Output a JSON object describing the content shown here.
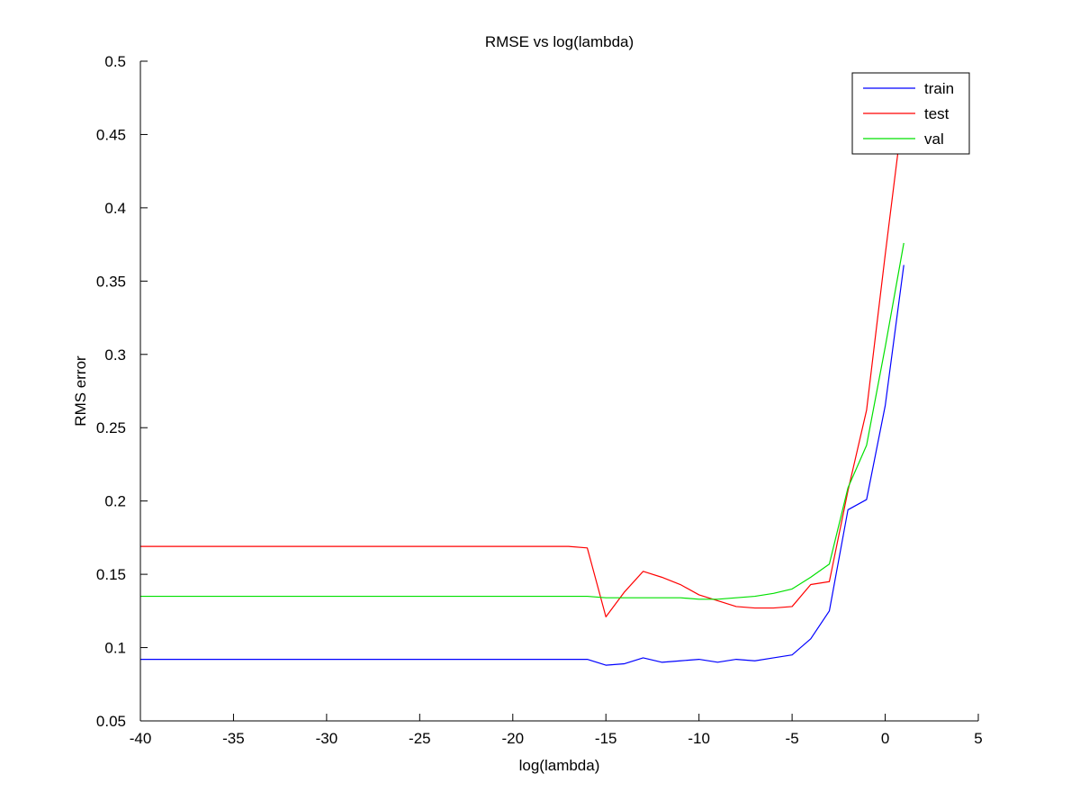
{
  "chart_data": {
    "type": "line",
    "title": "RMSE vs log(lambda)",
    "xlabel": "log(lambda)",
    "ylabel": "RMS error",
    "xlim": [
      -40,
      5
    ],
    "ylim": [
      0.05,
      0.5
    ],
    "xticks": [
      -40,
      -35,
      -30,
      -25,
      -20,
      -15,
      -10,
      -5,
      0,
      5
    ],
    "xtick_labels": [
      "-40",
      "-35",
      "-30",
      "-25",
      "-20",
      "-15",
      "-10",
      "-5",
      "0",
      "5"
    ],
    "yticks": [
      0.05,
      0.1,
      0.15,
      0.2,
      0.25,
      0.3,
      0.35,
      0.4,
      0.45,
      0.5
    ],
    "ytick_labels": [
      "0.05",
      "0.1",
      "0.15",
      "0.2",
      "0.25",
      "0.3",
      "0.35",
      "0.4",
      "0.45",
      "0.5"
    ],
    "grid": false,
    "legend_position": "top-right",
    "x": [
      -40,
      -39,
      -38,
      -37,
      -36,
      -35,
      -34,
      -33,
      -32,
      -31,
      -30,
      -29,
      -28,
      -27,
      -26,
      -25,
      -24,
      -23,
      -22,
      -21,
      -20,
      -19,
      -18,
      -17,
      -16,
      -15,
      -14,
      -13,
      -12,
      -11,
      -10,
      -9,
      -8,
      -7,
      -6,
      -5,
      -4,
      -3,
      -2,
      -1,
      0,
      1
    ],
    "series": [
      {
        "name": "train",
        "color": "#0000ff",
        "values": [
          0.092,
          0.092,
          0.092,
          0.092,
          0.092,
          0.092,
          0.092,
          0.092,
          0.092,
          0.092,
          0.092,
          0.092,
          0.092,
          0.092,
          0.092,
          0.092,
          0.092,
          0.092,
          0.092,
          0.092,
          0.092,
          0.092,
          0.092,
          0.092,
          0.092,
          0.088,
          0.089,
          0.093,
          0.09,
          0.091,
          0.092,
          0.09,
          0.092,
          0.091,
          0.093,
          0.095,
          0.106,
          0.125,
          0.194,
          0.201,
          0.265,
          0.361
        ]
      },
      {
        "name": "test",
        "color": "#ff0000",
        "values": [
          0.169,
          0.169,
          0.169,
          0.169,
          0.169,
          0.169,
          0.169,
          0.169,
          0.169,
          0.169,
          0.169,
          0.169,
          0.169,
          0.169,
          0.169,
          0.169,
          0.169,
          0.169,
          0.169,
          0.169,
          0.169,
          0.169,
          0.169,
          0.169,
          0.168,
          0.121,
          0.138,
          0.152,
          0.148,
          0.143,
          0.136,
          0.132,
          0.128,
          0.127,
          0.127,
          0.128,
          0.143,
          0.145,
          0.207,
          0.262,
          0.368,
          0.47
        ]
      },
      {
        "name": "val",
        "color": "#00e000",
        "values": [
          0.135,
          0.135,
          0.135,
          0.135,
          0.135,
          0.135,
          0.135,
          0.135,
          0.135,
          0.135,
          0.135,
          0.135,
          0.135,
          0.135,
          0.135,
          0.135,
          0.135,
          0.135,
          0.135,
          0.135,
          0.135,
          0.135,
          0.135,
          0.135,
          0.135,
          0.134,
          0.134,
          0.134,
          0.134,
          0.134,
          0.133,
          0.133,
          0.134,
          0.135,
          0.137,
          0.14,
          0.148,
          0.157,
          0.209,
          0.238,
          0.305,
          0.376
        ]
      }
    ]
  }
}
